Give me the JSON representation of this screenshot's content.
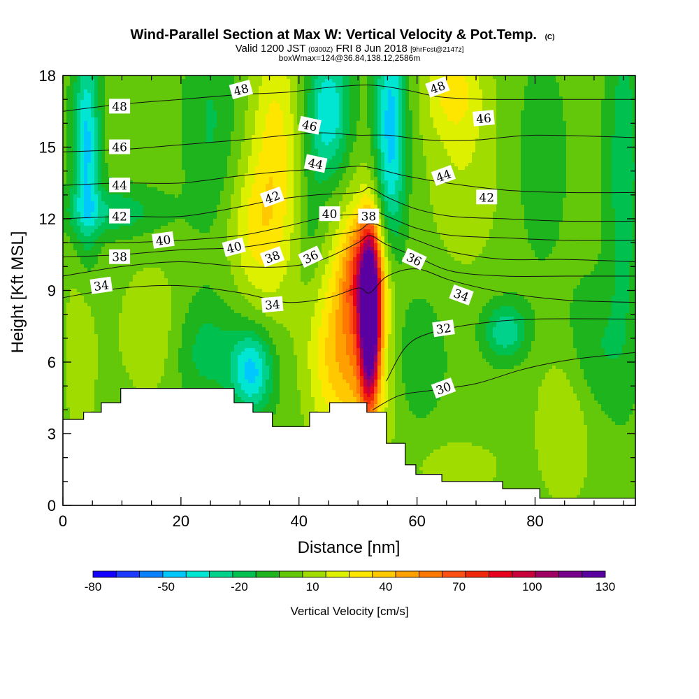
{
  "chart_data": {
    "type": "heatmap",
    "title": "Wind-Parallel Section at Max W: Vertical Velocity & Pot.Temp.",
    "title_mark": "(C)",
    "subtitle_pre": "Valid 1200 JST",
    "subtitle_utc": "(0300Z)",
    "subtitle_date": "FRI 8 Jun 2018",
    "subtitle_fcst": "[9hrFcst@2147z]",
    "subtitle2": "boxWmax=124@36.84,138.12,2586m",
    "xlabel": "Distance [nm]",
    "ylabel": "Height [Kft MSL]",
    "xlim": [
      0,
      97
    ],
    "ylim": [
      0,
      18
    ],
    "x_ticks": [
      0,
      20,
      40,
      60,
      80
    ],
    "y_ticks": [
      0,
      3,
      6,
      9,
      12,
      15,
      18
    ],
    "colorbar": {
      "title": "Vertical Velocity [cm/s]",
      "min": -80,
      "max": 130,
      "step": 10,
      "tick_labels": [
        "-80",
        "-50",
        "-20",
        "10",
        "40",
        "70",
        "100",
        "130"
      ],
      "tick_values": [
        -80,
        -50,
        -20,
        10,
        40,
        70,
        100,
        130
      ],
      "colors": [
        "#1400ff",
        "#1e3cff",
        "#0a82ff",
        "#00c8ff",
        "#00e6d2",
        "#00d28c",
        "#00c050",
        "#1eb41e",
        "#64c80a",
        "#a0dc00",
        "#dcf000",
        "#ffe600",
        "#ffc800",
        "#ffa000",
        "#ff7800",
        "#ff5014",
        "#f0280a",
        "#e6001e",
        "#c8003c",
        "#a00064",
        "#78008c",
        "#5a00a0"
      ]
    },
    "terrain_kft": [
      [
        0,
        3.6
      ],
      [
        3.5,
        3.6
      ],
      [
        3.5,
        3.9
      ],
      [
        6.5,
        3.9
      ],
      [
        6.5,
        4.3
      ],
      [
        9.8,
        4.3
      ],
      [
        9.8,
        4.9
      ],
      [
        29,
        4.9
      ],
      [
        29,
        4.3
      ],
      [
        32.2,
        4.3
      ],
      [
        32.2,
        3.9
      ],
      [
        35.5,
        3.9
      ],
      [
        35.5,
        3.3
      ],
      [
        41.8,
        3.3
      ],
      [
        41.8,
        3.9
      ],
      [
        45.2,
        3.9
      ],
      [
        45.2,
        4.3
      ],
      [
        51.5,
        4.3
      ],
      [
        51.5,
        3.9
      ],
      [
        54.8,
        3.9
      ],
      [
        54.8,
        2.6
      ],
      [
        58,
        2.6
      ],
      [
        58,
        1.7
      ],
      [
        59.8,
        1.7
      ],
      [
        59.8,
        1.3
      ],
      [
        64.2,
        1.3
      ],
      [
        64.2,
        1.0
      ],
      [
        74.5,
        1.0
      ],
      [
        74.5,
        0.7
      ],
      [
        80.8,
        0.7
      ],
      [
        80.8,
        0.3
      ],
      [
        97,
        0.3
      ]
    ],
    "w_field": {
      "background_cms": 0,
      "features": [
        {
          "x": 52,
          "y": 7.8,
          "sx": 1.1,
          "sy": 2.3,
          "amp": 130
        },
        {
          "x": 51,
          "y": 7.5,
          "sx": 3.5,
          "sy": 3.4,
          "amp": 55
        },
        {
          "x": 51,
          "y": 9.8,
          "sx": 2.5,
          "sy": 1.5,
          "amp": 40
        },
        {
          "x": 45,
          "y": 6.2,
          "sx": 3.0,
          "sy": 2.5,
          "amp": 25
        },
        {
          "x": 36,
          "y": 14.5,
          "sx": 3.0,
          "sy": 4.0,
          "amp": 30
        },
        {
          "x": 32,
          "y": 11.5,
          "sx": 3.0,
          "sy": 2.0,
          "amp": 20
        },
        {
          "x": 68,
          "y": 14,
          "sx": 4.5,
          "sy": 3.0,
          "amp": 14
        },
        {
          "x": 66,
          "y": 17.5,
          "sx": 3.5,
          "sy": 1.5,
          "amp": 24
        },
        {
          "x": 85,
          "y": 3.5,
          "sx": 3.5,
          "sy": 2.5,
          "amp": 16
        },
        {
          "x": 15,
          "y": 7.3,
          "sx": 4.0,
          "sy": 2.0,
          "amp": 15
        },
        {
          "x": 3,
          "y": 6.5,
          "sx": 2.0,
          "sy": 3.0,
          "amp": 14
        },
        {
          "x": 67,
          "y": 1.6,
          "sx": 5.0,
          "sy": 0.8,
          "amp": 14
        },
        {
          "x": 42,
          "y": 12.0,
          "sx": 1.5,
          "sy": 2.0,
          "amp": -10
        },
        {
          "x": 55.5,
          "y": 15.5,
          "sx": 1.8,
          "sy": 4.0,
          "amp": -48
        },
        {
          "x": 45,
          "y": 16.5,
          "sx": 2.5,
          "sy": 2.0,
          "amp": -42
        },
        {
          "x": 4,
          "y": 15,
          "sx": 1.5,
          "sy": 3.0,
          "amp": -45
        },
        {
          "x": 8,
          "y": 12.3,
          "sx": 6.0,
          "sy": 0.7,
          "amp": -22
        },
        {
          "x": 32,
          "y": 5.6,
          "sx": 2.5,
          "sy": 1.2,
          "amp": -45
        },
        {
          "x": 24,
          "y": 6.5,
          "sx": 4.0,
          "sy": 1.5,
          "amp": -18
        },
        {
          "x": 59,
          "y": 6.3,
          "sx": 4.0,
          "sy": 2.0,
          "amp": -12
        },
        {
          "x": 75,
          "y": 7.3,
          "sx": 2.5,
          "sy": 0.8,
          "amp": -32
        },
        {
          "x": 95,
          "y": 14,
          "sx": 2.0,
          "sy": 5.0,
          "amp": -20
        },
        {
          "x": 90,
          "y": 6.5,
          "sx": 4.0,
          "sy": 2.0,
          "amp": -14
        },
        {
          "x": 25,
          "y": 16,
          "sx": 3.0,
          "sy": 3.0,
          "amp": -14
        },
        {
          "x": 81,
          "y": 14.5,
          "sx": 3.0,
          "sy": 3.0,
          "amp": -10
        }
      ]
    },
    "theta_contours": [
      {
        "label": "30",
        "values_kft": [
          [
            52.5,
            4.0
          ],
          [
            57,
            4.6
          ],
          [
            62,
            4.8
          ],
          [
            70,
            5.1
          ],
          [
            78,
            5.7
          ],
          [
            86,
            6.1
          ],
          [
            97,
            6.4
          ]
        ]
      },
      {
        "label": "32",
        "values_kft": [
          [
            54.8,
            5.2
          ],
          [
            58,
            6.6
          ],
          [
            62,
            7.2
          ],
          [
            70,
            7.6
          ],
          [
            80,
            7.8
          ],
          [
            97,
            7.8
          ]
        ]
      },
      {
        "label": "34",
        "values_kft": [
          [
            0,
            8.7
          ],
          [
            10,
            9.1
          ],
          [
            20,
            9.2
          ],
          [
            30,
            8.9
          ],
          [
            38,
            8.5
          ],
          [
            45,
            8.7
          ],
          [
            50,
            9.1
          ],
          [
            52,
            8.9
          ],
          [
            55,
            9.6
          ],
          [
            60,
            9.9
          ],
          [
            66,
            9.4
          ],
          [
            75,
            8.9
          ],
          [
            85,
            8.6
          ],
          [
            97,
            8.5
          ]
        ]
      },
      {
        "label": "36",
        "values_kft": [
          [
            0,
            9.6
          ],
          [
            10,
            10.0
          ],
          [
            20,
            10.2
          ],
          [
            30,
            10.0
          ],
          [
            38,
            10.0
          ],
          [
            44,
            10.3
          ],
          [
            50,
            11.0
          ],
          [
            52,
            11.3
          ],
          [
            55,
            10.9
          ],
          [
            60,
            10.4
          ],
          [
            66,
            9.8
          ],
          [
            75,
            9.6
          ],
          [
            85,
            9.6
          ],
          [
            97,
            9.6
          ]
        ]
      },
      {
        "label": "38",
        "values_kft": [
          [
            0,
            10.4
          ],
          [
            10,
            10.5
          ],
          [
            20,
            10.7
          ],
          [
            30,
            10.8
          ],
          [
            38,
            11.1
          ],
          [
            45,
            11.3
          ],
          [
            50,
            11.5
          ],
          [
            52,
            11.8
          ],
          [
            55,
            11.6
          ],
          [
            60,
            11.1
          ],
          [
            66,
            10.6
          ],
          [
            75,
            10.3
          ],
          [
            85,
            10.3
          ],
          [
            97,
            10.2
          ]
        ]
      },
      {
        "label": "40",
        "values_kft": [
          [
            0,
            11.0
          ],
          [
            10,
            11.0
          ],
          [
            20,
            11.1
          ],
          [
            30,
            11.3
          ],
          [
            38,
            11.7
          ],
          [
            45,
            12.1
          ],
          [
            50,
            12.2
          ],
          [
            52,
            12.4
          ],
          [
            55,
            12.1
          ],
          [
            60,
            11.6
          ],
          [
            66,
            11.3
          ],
          [
            75,
            11.2
          ],
          [
            85,
            11.1
          ],
          [
            97,
            11.1
          ]
        ]
      },
      {
        "label": "42",
        "values_kft": [
          [
            0,
            12.0
          ],
          [
            10,
            12.1
          ],
          [
            20,
            12.1
          ],
          [
            30,
            12.5
          ],
          [
            36,
            12.8
          ],
          [
            43,
            13.0
          ],
          [
            50,
            13.1
          ],
          [
            52,
            13.3
          ],
          [
            55,
            12.9
          ],
          [
            60,
            12.4
          ],
          [
            66,
            12.1
          ],
          [
            75,
            12.0
          ],
          [
            85,
            11.9
          ],
          [
            97,
            11.9
          ]
        ]
      },
      {
        "label": "44",
        "values_kft": [
          [
            0,
            13.4
          ],
          [
            10,
            13.5
          ],
          [
            20,
            13.5
          ],
          [
            30,
            13.8
          ],
          [
            38,
            14.0
          ],
          [
            45,
            14.1
          ],
          [
            50,
            14.2
          ],
          [
            53,
            14.1
          ],
          [
            58,
            13.8
          ],
          [
            65,
            13.5
          ],
          [
            75,
            13.2
          ],
          [
            85,
            13.1
          ],
          [
            97,
            13.1
          ]
        ]
      },
      {
        "label": "46",
        "values_kft": [
          [
            0,
            14.8
          ],
          [
            10,
            14.9
          ],
          [
            20,
            15.1
          ],
          [
            30,
            15.3
          ],
          [
            38,
            15.5
          ],
          [
            44,
            15.6
          ],
          [
            50,
            15.5
          ],
          [
            55,
            15.5
          ],
          [
            62,
            15.3
          ],
          [
            70,
            15.3
          ],
          [
            80,
            15.5
          ],
          [
            97,
            15.4
          ]
        ]
      },
      {
        "label": "48",
        "values_kft": [
          [
            0,
            16.5
          ],
          [
            10,
            16.8
          ],
          [
            20,
            17.0
          ],
          [
            30,
            17.2
          ],
          [
            38,
            17.3
          ],
          [
            45,
            17.5
          ],
          [
            52,
            17.6
          ],
          [
            58,
            17.4
          ],
          [
            64,
            17.1
          ],
          [
            72,
            17.0
          ],
          [
            85,
            17.0
          ],
          [
            97,
            17.0
          ]
        ]
      }
    ],
    "contour_labels": [
      {
        "text": "48",
        "x": 9.6,
        "y": 16.7,
        "angle": 0
      },
      {
        "text": "46",
        "x": 9.6,
        "y": 15.0,
        "angle": 0
      },
      {
        "text": "44",
        "x": 9.6,
        "y": 13.4,
        "angle": 0
      },
      {
        "text": "42",
        "x": 9.6,
        "y": 12.1,
        "angle": 0
      },
      {
        "text": "38",
        "x": 9.6,
        "y": 10.4,
        "angle": 0
      },
      {
        "text": "34",
        "x": 6.5,
        "y": 9.2,
        "angle": -8
      },
      {
        "text": "40",
        "x": 17,
        "y": 11.1,
        "angle": -8
      },
      {
        "text": "40",
        "x": 29,
        "y": 10.8,
        "angle": -15
      },
      {
        "text": "38",
        "x": 35.5,
        "y": 10.4,
        "angle": -20
      },
      {
        "text": "36",
        "x": 42,
        "y": 10.4,
        "angle": -25
      },
      {
        "text": "42",
        "x": 35.5,
        "y": 12.9,
        "angle": -20
      },
      {
        "text": "44",
        "x": 42.8,
        "y": 14.3,
        "angle": 12
      },
      {
        "text": "46",
        "x": 41.8,
        "y": 15.9,
        "angle": 12
      },
      {
        "text": "48",
        "x": 30.2,
        "y": 17.4,
        "angle": -15
      },
      {
        "text": "40",
        "x": 45.2,
        "y": 12.2,
        "angle": 0
      },
      {
        "text": "38",
        "x": 51.8,
        "y": 12.1,
        "angle": 0
      },
      {
        "text": "36",
        "x": 59.5,
        "y": 10.3,
        "angle": 25
      },
      {
        "text": "34",
        "x": 67.5,
        "y": 8.8,
        "angle": 20
      },
      {
        "text": "32",
        "x": 64.5,
        "y": 7.4,
        "angle": -8
      },
      {
        "text": "30",
        "x": 64.5,
        "y": 4.9,
        "angle": -20
      },
      {
        "text": "44",
        "x": 64.5,
        "y": 13.8,
        "angle": -20
      },
      {
        "text": "42",
        "x": 71.8,
        "y": 12.9,
        "angle": 0
      },
      {
        "text": "46",
        "x": 71.3,
        "y": 16.2,
        "angle": -5
      },
      {
        "text": "48",
        "x": 63.5,
        "y": 17.5,
        "angle": -20
      },
      {
        "text": "34",
        "x": 35.5,
        "y": 8.4,
        "angle": -5
      }
    ]
  }
}
